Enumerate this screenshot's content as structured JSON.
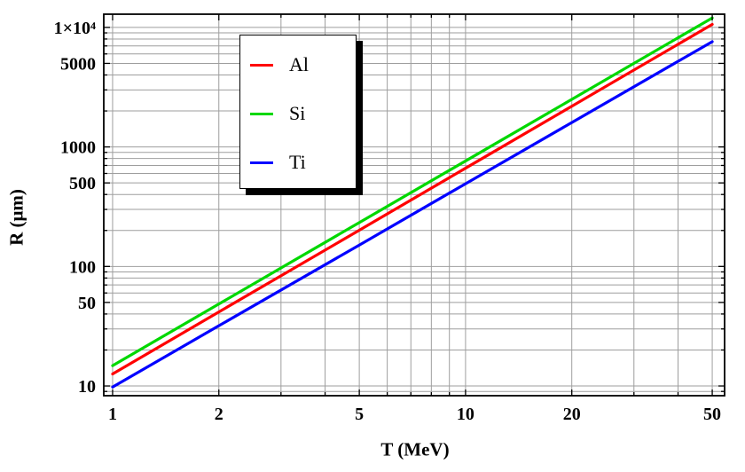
{
  "chart_data": {
    "type": "line",
    "title": "",
    "xlabel": "T (MeV)",
    "ylabel": "R (μm)",
    "x_scale": "log",
    "y_scale": "log",
    "xlim": [
      0.944,
      54.2
    ],
    "ylim": [
      8.29,
      12900
    ],
    "grid": true,
    "grid_color": "#9E9E9E",
    "frame_color": "#000000",
    "x_ticks": [
      {
        "value": 1,
        "label": "1"
      },
      {
        "value": 2,
        "label": "2"
      },
      {
        "value": 5,
        "label": "5"
      },
      {
        "value": 10,
        "label": "10"
      },
      {
        "value": 20,
        "label": "20"
      },
      {
        "value": 50,
        "label": "50"
      }
    ],
    "x_minor": [
      3,
      4,
      6,
      7,
      8,
      9,
      30,
      40
    ],
    "y_ticks": [
      {
        "value": 10,
        "label": "10"
      },
      {
        "value": 50,
        "label": "50"
      },
      {
        "value": 100,
        "label": "100"
      },
      {
        "value": 500,
        "label": "500"
      },
      {
        "value": 1000,
        "label": "1000"
      },
      {
        "value": 5000,
        "label": "5000"
      },
      {
        "value": 10000,
        "label": "1×10⁴"
      }
    ],
    "y_minor": [
      9,
      20,
      30,
      40,
      60,
      70,
      80,
      90,
      200,
      300,
      400,
      600,
      700,
      800,
      900,
      2000,
      3000,
      4000,
      6000,
      7000,
      8000,
      9000
    ],
    "series": [
      {
        "name": "Al",
        "color": "#FF0000",
        "x": [
          1,
          2,
          5,
          10,
          20,
          50
        ],
        "y": [
          12.6,
          41.6,
          201,
          664,
          2190,
          10600
        ]
      },
      {
        "name": "Si",
        "color": "#00D800",
        "x": [
          1,
          2,
          5,
          10,
          20,
          50
        ],
        "y": [
          14.8,
          48.5,
          233,
          763,
          2500,
          12000
        ]
      },
      {
        "name": "Ti",
        "color": "#0000FF",
        "x": [
          1,
          2,
          5,
          10,
          20,
          50
        ],
        "y": [
          9.8,
          31.9,
          151,
          492,
          1600,
          7600
        ]
      }
    ],
    "legend": {
      "position": "upper-left-inside",
      "items": [
        {
          "label": "Al",
          "color": "#FF0000"
        },
        {
          "label": "Si",
          "color": "#00D800"
        },
        {
          "label": "Ti",
          "color": "#0000FF"
        }
      ]
    }
  }
}
